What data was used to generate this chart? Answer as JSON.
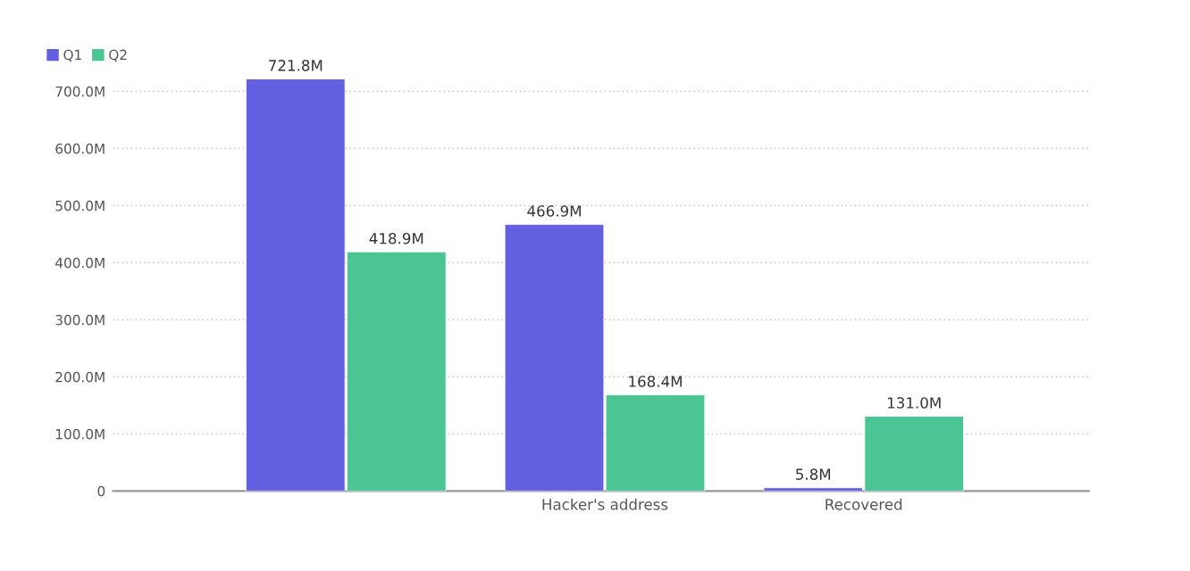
{
  "chart_data": {
    "type": "bar",
    "categories": [
      null,
      "Hacker's address",
      "Recovered"
    ],
    "series": [
      {
        "name": "Q1",
        "color": "#6360e0",
        "values": [
          721.8,
          466.9,
          5.8
        ],
        "value_labels": [
          "721.8M",
          "466.9M",
          "5.8M"
        ]
      },
      {
        "name": "Q2",
        "color": "#4cc594",
        "values": [
          418.9,
          168.4,
          131.0
        ],
        "value_labels": [
          "418.9M",
          "168.4M",
          "131.0M"
        ]
      }
    ],
    "ylim": [
      0,
      730
    ],
    "yticks": [
      0,
      {
        "value": 100,
        "label": "100.0M"
      },
      {
        "value": 200,
        "label": "200.0M"
      },
      {
        "value": 300,
        "label": "300.0M"
      },
      {
        "value": 400,
        "label": "400.0M"
      },
      {
        "value": 500,
        "label": "500.0M"
      },
      {
        "value": 600,
        "label": "600.0M"
      },
      {
        "value": 700,
        "label": "700.0M"
      }
    ],
    "grid": "y",
    "legend": "top left"
  }
}
